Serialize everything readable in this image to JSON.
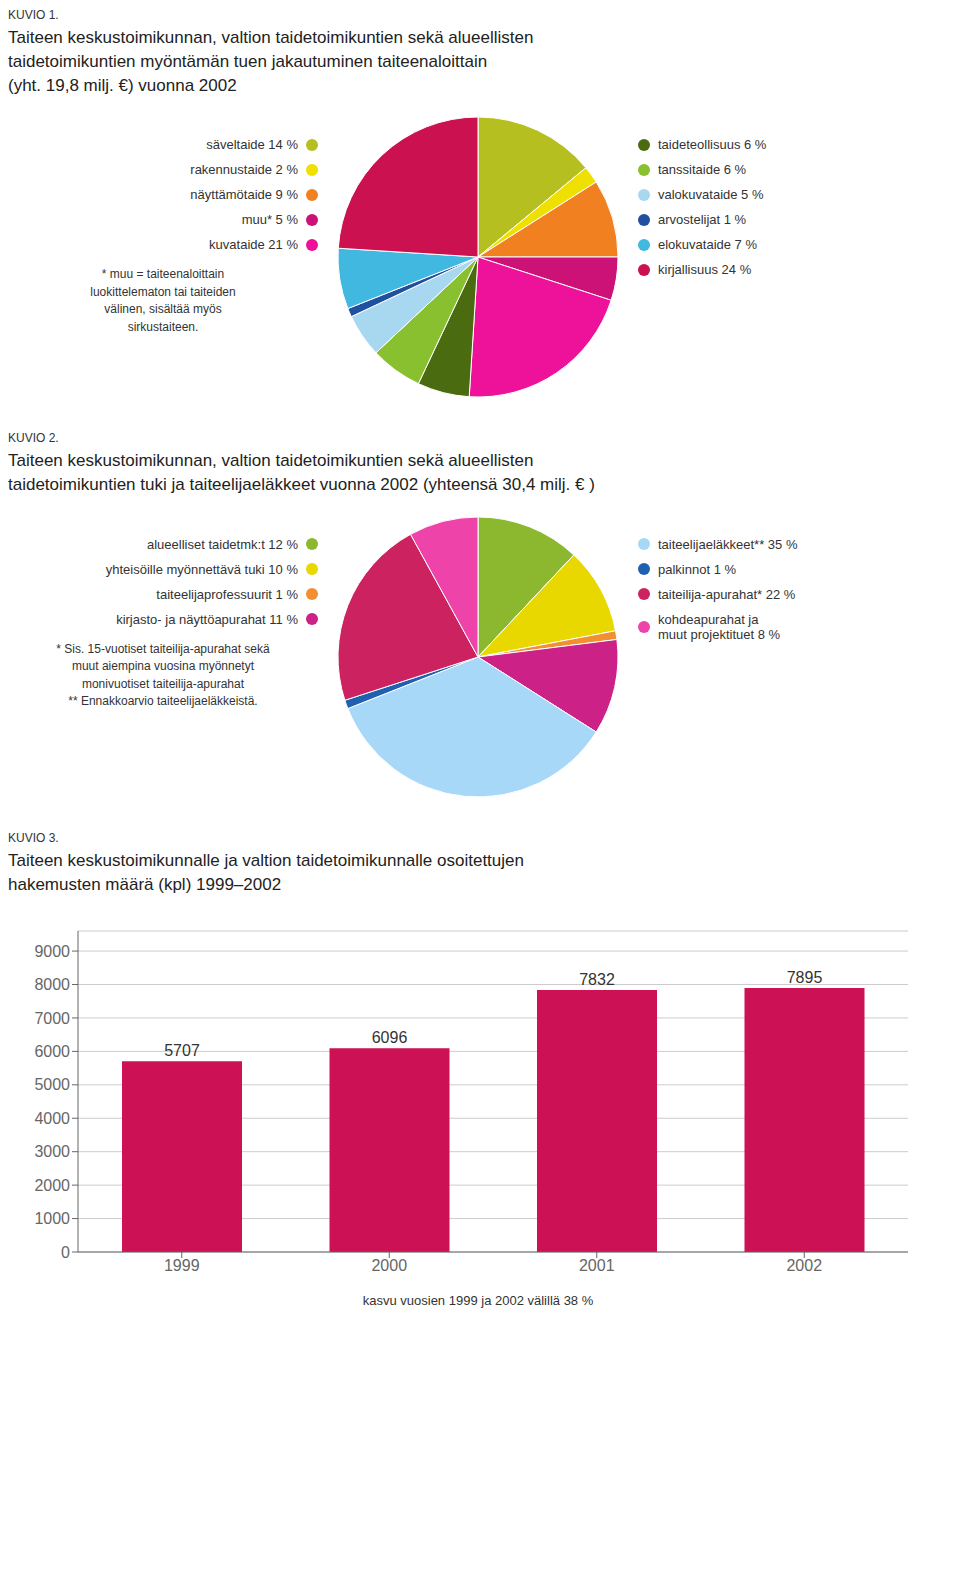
{
  "chart_data": [
    {
      "type": "pie",
      "subtitle": "KUVIO 1.",
      "title": "Taiteen keskustoimikunnan, valtion taidetoimikuntien sekä alueellisten\ntaidetoimikuntien myöntämän tuen jakautuminen taiteenaloittain\n(yht. 19,8 milj. €) vuonna 2002",
      "categories": [
        "säveltaide 14 %",
        "rakennustaide 2 %",
        "näyttämötaide 9 %",
        "muu* 5 %",
        "kuvataide 21 %",
        "taideteollisuus 6 %",
        "tanssitaide 6 %",
        "valokuvataide 5 %",
        "arvostelijat 1 %",
        "elokuvataide 7 %",
        "kirjallisuus 24 %"
      ],
      "values": [
        14,
        2,
        9,
        5,
        21,
        6,
        6,
        5,
        1,
        7,
        24
      ],
      "colors": [
        "#b5c020",
        "#f0e000",
        "#f08020",
        "#cc1177",
        "#ee1199",
        "#4a6b10",
        "#88c030",
        "#a8d8f0",
        "#2050a0",
        "#40b8e0",
        "#cc1150"
      ],
      "annotations": [
        "* muu = taiteenaloittain\nluokittelematon tai taiteiden\nvälinen, sisältää myös\nsirkustaiteen."
      ]
    },
    {
      "type": "pie",
      "subtitle": "KUVIO 2.",
      "title": "Taiteen keskustoimikunnan, valtion taidetoimikuntien sekä alueellisten\ntaidetoimikuntien tuki ja taiteelijaeläkkeet vuonna 2002 (yhteensä 30,4 milj. € )",
      "categories": [
        "alueelliset taidetmk:t 12 %",
        "yhteisöille myönnettävä tuki 10 %",
        "taiteelijaprofessuurit 1 %",
        "kirjasto- ja näyttöapurahat 11 %",
        "taiteelijaeläkkeet** 35 %",
        "palkinnot 1 %",
        "taiteilija-apurahat* 22 %",
        "kohdeapurahat ja\nmuut projektituet 8 %"
      ],
      "values": [
        12,
        10,
        1,
        11,
        35,
        1,
        22,
        8
      ],
      "colors": [
        "#8cb830",
        "#e8d800",
        "#f09030",
        "#cc2288",
        "#a8d8f8",
        "#2060b0",
        "#cc2260",
        "#ee44aa"
      ],
      "annotations": [
        "* Sis. 15-vuotiset taiteilija-apurahat sekä\nmuut aiempina vuosina myönnetyt\nmonivuotiset taiteilija-apurahat\n** Ennakkoarvio taiteelijaeläkkeistä."
      ]
    },
    {
      "type": "bar",
      "subtitle": "KUVIO 3.",
      "title": "Taiteen keskustoimikunnalle ja valtion taidetoimikunnalle osoitettujen\nhakemusten määrä (kpl) 1999–2002",
      "categories": [
        "1999",
        "2000",
        "2001",
        "2002"
      ],
      "values": [
        5707,
        6096,
        7832,
        7895
      ],
      "color": "#cc1155",
      "ylim": [
        0,
        9600
      ],
      "yticks": [
        0,
        1000,
        2000,
        3000,
        4000,
        5000,
        6000,
        7000,
        8000,
        9000
      ],
      "grid": true,
      "data_labels": true,
      "annotations": [
        "kasvu vuosien 1999 ja 2002 välillä 38 %"
      ]
    }
  ]
}
